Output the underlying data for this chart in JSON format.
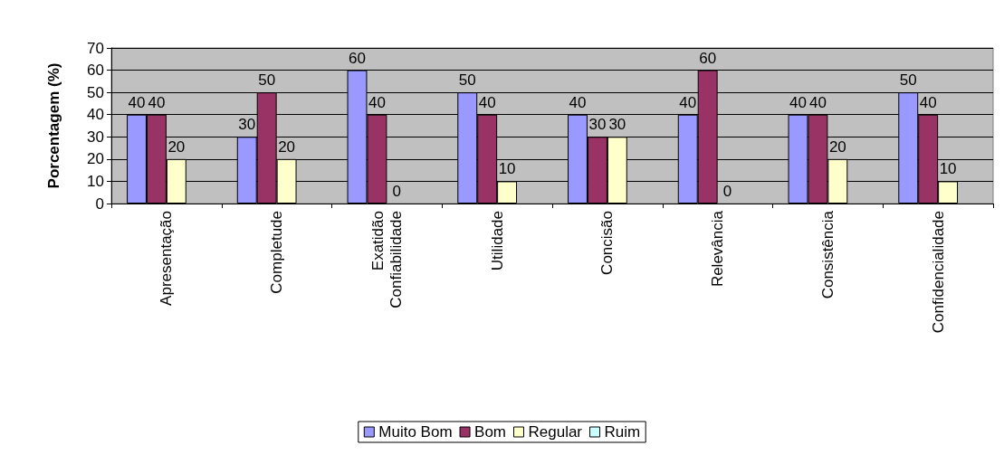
{
  "chart_data": {
    "type": "bar",
    "ylabel": "Porcentagem (%)",
    "categories": [
      "Apresentação",
      "Completude",
      "Exatidão\nConfiabilidade",
      "Utilidade",
      "Concisão",
      "Relevância",
      "Consistência",
      "Confidencialidade"
    ],
    "series": [
      {
        "name": "Muito Bom",
        "color": "#9999ff",
        "values": [
          40,
          30,
          60,
          50,
          40,
          40,
          40,
          50
        ]
      },
      {
        "name": "Bom",
        "color": "#993366",
        "values": [
          40,
          50,
          40,
          40,
          30,
          60,
          40,
          40
        ]
      },
      {
        "name": "Regular",
        "color": "#ffffcc",
        "values": [
          20,
          20,
          0,
          10,
          30,
          0,
          20,
          10
        ]
      },
      {
        "name": "Ruim",
        "color": "#ccffff",
        "values": [
          null,
          null,
          null,
          null,
          null,
          null,
          null,
          null
        ]
      }
    ],
    "ylim": [
      0,
      70
    ],
    "yticks": [
      0,
      10,
      20,
      30,
      40,
      50,
      60,
      70
    ],
    "grid": "y",
    "data_labels": true,
    "legend": "bottom"
  }
}
